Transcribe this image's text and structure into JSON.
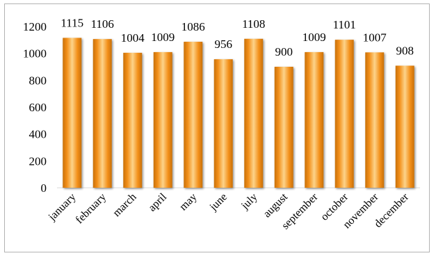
{
  "chart_data": {
    "type": "bar",
    "title": "",
    "xlabel": "",
    "ylabel": "",
    "categories": [
      "january",
      "february",
      "march",
      "april",
      "may",
      "june",
      "july",
      "august",
      "september",
      "october",
      "november",
      "december"
    ],
    "values": [
      1115,
      1106,
      1004,
      1009,
      1086,
      956,
      1108,
      900,
      1009,
      1101,
      1007,
      908
    ],
    "data_labels": [
      "1115",
      "1106",
      "1004",
      "1009",
      "1086",
      "956",
      "1108",
      "900",
      "1009",
      "1101",
      "1007",
      "908"
    ],
    "ylim": [
      0,
      1200
    ],
    "yticks": [
      0,
      200,
      400,
      600,
      800,
      1000,
      1200
    ],
    "grid": false,
    "legend": "none",
    "bar_color": "#f79a1e",
    "bar_highlight": "#fcd38a",
    "bar_shadow": "#c8700a"
  }
}
